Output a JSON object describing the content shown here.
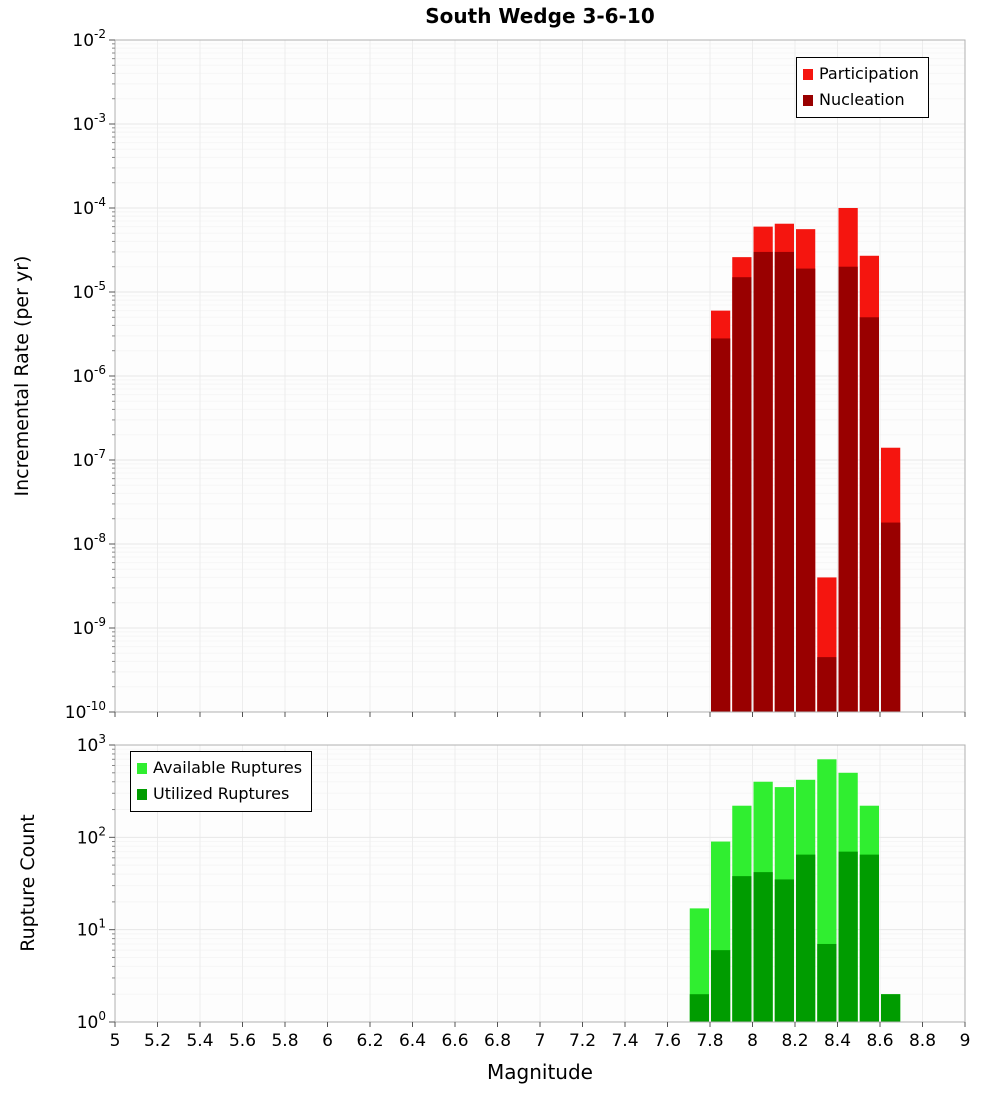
{
  "title": "South Wedge 3-6-10",
  "xlabel": "Magnitude",
  "chart_data": [
    {
      "type": "bar",
      "title": "South Wedge 3-6-10",
      "ylabel": "Incremental Rate (per yr)",
      "yscale": "log",
      "xlim": [
        5,
        9
      ],
      "ylim": [
        1e-10,
        0.01
      ],
      "grid": true,
      "legend_position": "top-right",
      "x_ticks": [
        5,
        5.2,
        5.4,
        5.6,
        5.8,
        6,
        6.2,
        6.4,
        6.6,
        6.8,
        7,
        7.2,
        7.4,
        7.6,
        7.8,
        8,
        8.2,
        8.4,
        8.6,
        8.8,
        9
      ],
      "x_tick_labels": [
        "5",
        "5.2",
        "5.4",
        "5.6",
        "5.8",
        "6",
        "6.2",
        "6.4",
        "6.6",
        "6.8",
        "7",
        "7.2",
        "7.4",
        "7.6",
        "7.8",
        "8",
        "8.2",
        "8.4",
        "8.6",
        "8.8",
        "9"
      ],
      "show_x_tick_labels": false,
      "bin_width": 0.1,
      "categories": [
        7.85,
        7.95,
        8.05,
        8.15,
        8.25,
        8.35,
        8.45,
        8.55,
        8.65
      ],
      "series": [
        {
          "name": "Participation",
          "color": "#f5150f",
          "values": [
            6e-06,
            2.6e-05,
            6e-05,
            6.5e-05,
            5.6e-05,
            4e-09,
            0.0001,
            2.7e-05,
            1.4e-07
          ]
        },
        {
          "name": "Nucleation",
          "color": "#990000",
          "values": [
            2.8e-06,
            1.5e-05,
            3e-05,
            3e-05,
            1.9e-05,
            4.5e-10,
            2e-05,
            5e-06,
            1.8e-08
          ]
        }
      ]
    },
    {
      "type": "bar",
      "title": "",
      "ylabel": "Rupture Count",
      "yscale": "log",
      "xlim": [
        5,
        9
      ],
      "ylim": [
        1,
        1000
      ],
      "grid": true,
      "legend_position": "top-left",
      "x_ticks": [
        5,
        5.2,
        5.4,
        5.6,
        5.8,
        6,
        6.2,
        6.4,
        6.6,
        6.8,
        7,
        7.2,
        7.4,
        7.6,
        7.8,
        8,
        8.2,
        8.4,
        8.6,
        8.8,
        9
      ],
      "x_tick_labels": [
        "5",
        "5.2",
        "5.4",
        "5.6",
        "5.8",
        "6",
        "6.2",
        "6.4",
        "6.6",
        "6.8",
        "7",
        "7.2",
        "7.4",
        "7.6",
        "7.8",
        "8",
        "8.2",
        "8.4",
        "8.6",
        "8.8",
        "9"
      ],
      "show_x_tick_labels": true,
      "bin_width": 0.1,
      "categories": [
        7.75,
        7.85,
        7.95,
        8.05,
        8.15,
        8.25,
        8.35,
        8.45,
        8.55,
        8.65
      ],
      "series": [
        {
          "name": "Available Ruptures",
          "color": "#30ee30",
          "values": [
            17,
            90,
            220,
            400,
            350,
            420,
            700,
            500,
            220,
            2
          ]
        },
        {
          "name": "Utilized Ruptures",
          "color": "#009c00",
          "values": [
            2,
            6,
            38,
            42,
            35,
            65,
            7,
            70,
            65,
            2
          ]
        }
      ]
    }
  ]
}
